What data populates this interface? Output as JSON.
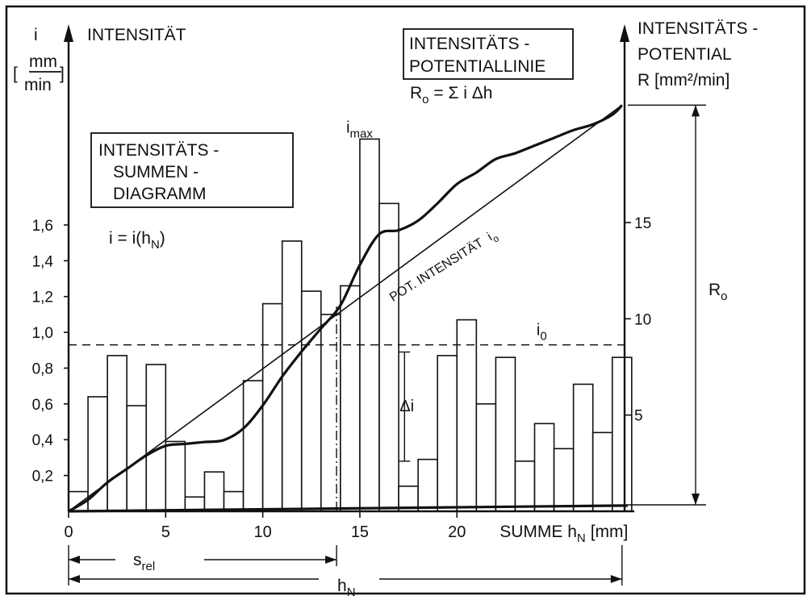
{
  "chart_data": {
    "type": "bar",
    "left_axis": {
      "symbol": "i",
      "title": "INTENSITÄT",
      "unit_top": "mm",
      "unit_bottom": "min",
      "ticks": [
        "0,2",
        "0,4",
        "0,6",
        "0,8",
        "1,0",
        "1,2",
        "1,4",
        "1,6"
      ],
      "tick_values": [
        0.2,
        0.4,
        0.6,
        0.8,
        1.0,
        1.2,
        1.4,
        1.6
      ],
      "ylim": [
        0,
        2.1
      ]
    },
    "right_axis": {
      "title_line1": "INTENSITÄTS -",
      "title_line2": "POTENTIAL",
      "title_line3": "R [mm²/min]",
      "ticks": [
        "5",
        "10",
        "15"
      ],
      "tick_values": [
        5,
        10,
        15
      ],
      "ylim": [
        0,
        21.2
      ]
    },
    "x_axis": {
      "label": "SUMME h",
      "label_sub": "N",
      "label_unit": "[mm]",
      "ticks": [
        "0",
        "5",
        "10",
        "15",
        "20"
      ],
      "tick_values": [
        0,
        5,
        10,
        15,
        20
      ],
      "xlim": [
        0,
        28.8
      ]
    },
    "bars": {
      "width": 1.0,
      "x_start": [
        0,
        1,
        2,
        3,
        4,
        5,
        6,
        7,
        8,
        9,
        10,
        11,
        12,
        13,
        14,
        15,
        16,
        17,
        18,
        19,
        20,
        21,
        22,
        23,
        24,
        25,
        26,
        27,
        28
      ],
      "values": [
        0.11,
        0.64,
        0.87,
        0.59,
        0.82,
        0.39,
        0.08,
        0.22,
        0.11,
        0.73,
        1.16,
        1.51,
        1.23,
        1.1,
        1.26,
        2.08,
        1.72,
        0.14,
        0.29,
        0.87,
        1.07,
        0.6,
        0.86,
        0.28,
        0.49,
        0.35,
        0.71,
        0.44,
        0.86
      ]
    },
    "potential_curve": {
      "x": [
        0,
        1,
        2,
        3,
        4,
        5,
        6,
        7,
        8,
        9,
        10,
        11,
        12,
        13,
        14,
        15,
        16,
        17,
        18,
        19,
        20,
        21,
        22,
        23,
        24,
        25,
        26,
        27,
        28,
        28.5
      ],
      "y": [
        0,
        0.6,
        1.5,
        2.2,
        2.9,
        3.4,
        3.5,
        3.6,
        3.7,
        4.3,
        5.5,
        7.0,
        8.3,
        9.5,
        10.7,
        12.8,
        14.4,
        14.6,
        15.1,
        16.0,
        17.0,
        17.6,
        18.3,
        18.6,
        19.0,
        19.4,
        19.8,
        20.1,
        20.6,
        21.1
      ]
    },
    "potential_line": {
      "x": [
        0,
        28.5
      ],
      "y": [
        0,
        21.1
      ]
    },
    "baseline": {
      "x": [
        0,
        28.8
      ],
      "y": [
        0,
        0.3
      ]
    },
    "i0_level": 0.93,
    "i0_label": "i",
    "i0_sub": "0",
    "imax_label": "i",
    "imax_sub": "max",
    "line_label": "POT. INTENSITÄT",
    "line_label_i": "i",
    "line_label_sub": "o",
    "delta_i_label": "Δi",
    "delta_i_range": [
      0.28,
      0.89
    ],
    "delta_i_x": 17.3,
    "box1_lines": [
      "INTENSITÄTS -",
      "SUMMEN -",
      "DIAGRAMM"
    ],
    "eq1_text": "i = i(h",
    "eq1_sub": "N",
    "eq1_end": ")",
    "box2_lines": [
      "INTENSITÄTS -",
      "POTENTIALLINIE"
    ],
    "eq2_text": "R",
    "eq2_sub": "o",
    "eq2_end": " = Σ i Δh",
    "r0_label": "R",
    "r0_sub": "o",
    "s_rel_label": "s",
    "s_rel_sub": "rel",
    "s_rel_range": [
      0,
      13.8
    ],
    "h_n_label": "h",
    "h_n_sub": "N",
    "h_n_range": [
      0,
      28.5
    ],
    "dashdot_x": 13.8
  }
}
